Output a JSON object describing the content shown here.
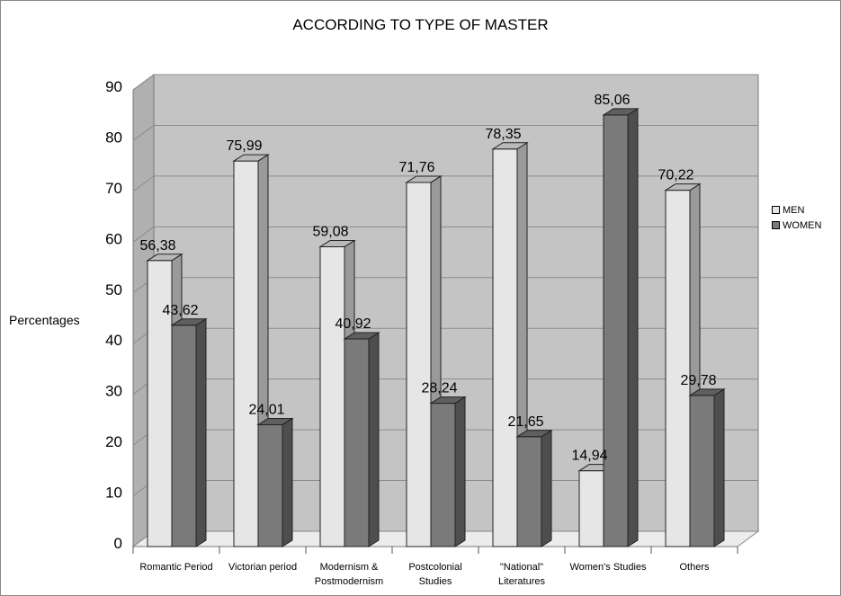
{
  "chart_data": {
    "type": "bar",
    "title": "ACCORDING TO TYPE OF MASTER",
    "ylabel": "Percentages",
    "xlabel": "",
    "ylim": [
      0,
      90
    ],
    "yticks": [
      0,
      10,
      20,
      30,
      40,
      50,
      60,
      70,
      80,
      90
    ],
    "categories": [
      [
        "Romantic Period"
      ],
      [
        "Victorian period"
      ],
      [
        "Modernism &",
        "Postmodernism"
      ],
      [
        "Postcolonial",
        "Studies"
      ],
      [
        "\"National\"",
        "Literatures"
      ],
      [
        "Women's Studies"
      ],
      [
        "Others"
      ]
    ],
    "series": [
      {
        "name": "MEN",
        "values": [
          56.38,
          75.99,
          59.08,
          71.76,
          78.35,
          14.94,
          70.22
        ],
        "labels": [
          "56,38",
          "75,99",
          "59,08",
          "71,76",
          "78,35",
          "14,94",
          "70,22"
        ],
        "colors": {
          "front": "#e6e6e6",
          "side": "#9a9a9a",
          "top": "#b9b9b9"
        }
      },
      {
        "name": "WOMEN",
        "values": [
          43.62,
          24.01,
          40.92,
          28.24,
          21.65,
          85.06,
          29.78
        ],
        "labels": [
          "43,62",
          "24,01",
          "40,92",
          "28,24",
          "21,65",
          "85,06",
          "29,78"
        ],
        "colors": {
          "front": "#7a7a7a",
          "side": "#4e4e4e",
          "top": "#5f5f5f"
        }
      }
    ],
    "grid": true,
    "legend_position": "right",
    "style": "3d-clustered-column",
    "wall_color": "#c4c4c4",
    "floor_color": "#ececec"
  }
}
